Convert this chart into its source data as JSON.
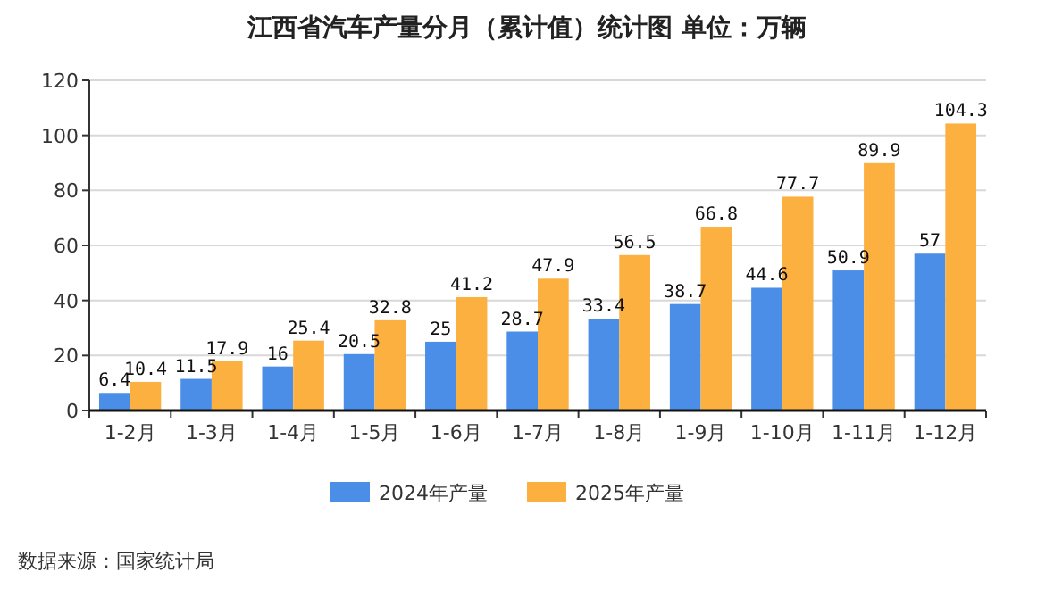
{
  "chart_data": {
    "type": "bar",
    "title": "江西省汽车产量分月（累计值）统计图 单位：万辆",
    "categories": [
      "1-2月",
      "1-3月",
      "1-4月",
      "1-5月",
      "1-6月",
      "1-7月",
      "1-8月",
      "1-9月",
      "1-10月",
      "1-11月",
      "1-12月"
    ],
    "series": [
      {
        "name": "2024年产量",
        "color": "#4a8ee8",
        "values": [
          6.4,
          11.5,
          16,
          20.5,
          25,
          28.7,
          33.4,
          38.7,
          44.6,
          50.9,
          57
        ]
      },
      {
        "name": "2025年产量",
        "color": "#fbb040",
        "values": [
          10.4,
          17.9,
          25.4,
          32.8,
          41.2,
          47.9,
          56.5,
          66.8,
          77.7,
          89.9,
          104.3
        ]
      }
    ],
    "ylim": [
      0,
      120
    ],
    "yticks": [
      0,
      20,
      40,
      60,
      80,
      100,
      120
    ],
    "grid": "y",
    "legend": "bottom",
    "data_labels": true,
    "annotations": [
      "数据来源：国家统计局"
    ]
  }
}
